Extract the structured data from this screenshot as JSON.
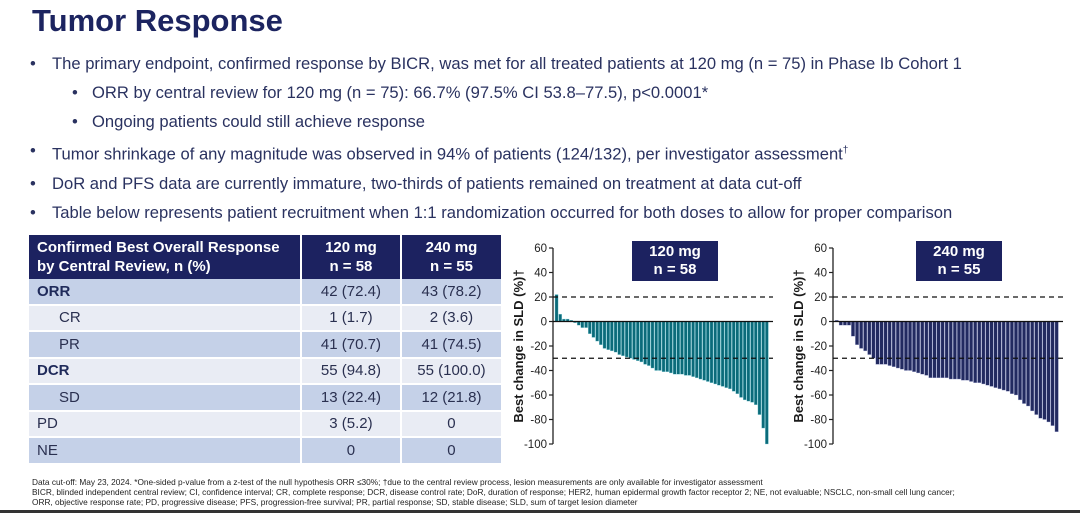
{
  "title": "Tumor Response",
  "bullets": [
    {
      "level": 1,
      "text": "The primary endpoint, confirmed response by BICR, was met for all treated patients at 120 mg (n = 75) in Phase Ib Cohort 1"
    },
    {
      "level": 2,
      "text": "ORR by central review for 120 mg (n = 75): 66.7% (97.5% CI 53.8–77.5), p<0.0001*"
    },
    {
      "level": 2,
      "text": "Ongoing patients could still achieve response"
    },
    {
      "level": 1,
      "text": "Tumor shrinkage of any magnitude was observed in 94% of patients (124/132), per investigator assessment",
      "sup": "†"
    },
    {
      "level": 1,
      "text": "DoR and PFS data are currently immature, two-thirds of patients remained on treatment at data cut-off"
    },
    {
      "level": 1,
      "text": "Table below represents patient recruitment when 1:1 randomization occurred for both doses to allow for proper comparison"
    }
  ],
  "bullet_glyph": "•",
  "table": {
    "header": {
      "label_line1": "Confirmed Best Overall Response",
      "label_line2": "by Central Review, n (%)",
      "col1_line1": "120 mg",
      "col1_line2": "n = 58",
      "col2_line1": "240 mg",
      "col2_line2": "n = 55"
    },
    "rows": [
      {
        "label": "ORR",
        "bold": true,
        "indent": false,
        "v120": "42 (72.4)",
        "v240": "43 (78.2)"
      },
      {
        "label": "CR",
        "bold": false,
        "indent": true,
        "v120": "1 (1.7)",
        "v240": "2 (3.6)"
      },
      {
        "label": "PR",
        "bold": false,
        "indent": true,
        "v120": "41 (70.7)",
        "v240": "41 (74.5)"
      },
      {
        "label": "DCR",
        "bold": true,
        "indent": false,
        "v120": "55 (94.8)",
        "v240": "55 (100.0)"
      },
      {
        "label": "SD",
        "bold": false,
        "indent": true,
        "v120": "13 (22.4)",
        "v240": "12 (21.8)"
      },
      {
        "label": "PD",
        "bold": false,
        "indent": false,
        "v120": "3 (5.2)",
        "v240": "0"
      },
      {
        "label": "NE",
        "bold": false,
        "indent": false,
        "v120": "0",
        "v240": "0"
      }
    ]
  },
  "chart_data": [
    {
      "type": "bar",
      "title_line1": "120 mg",
      "title_line2": "n = 58",
      "ylabel": "Best change in SLD (%)†",
      "xlabel": "",
      "ylim": [
        -100,
        60
      ],
      "yticks": [
        60,
        40,
        20,
        0,
        -20,
        -40,
        -60,
        -80,
        -100
      ],
      "reference_lines": [
        20,
        -30
      ],
      "color": "#0b6b7a",
      "values": [
        22,
        6,
        2,
        2,
        1,
        -1,
        -3,
        -5,
        -5,
        -10,
        -13,
        -16,
        -19,
        -22,
        -23,
        -24,
        -25,
        -27,
        -28,
        -29,
        -30,
        -31,
        -32,
        -33,
        -35,
        -36,
        -38,
        -40,
        -40,
        -41,
        -41,
        -42,
        -43,
        -43,
        -43,
        -44,
        -44,
        -45,
        -46,
        -47,
        -48,
        -49,
        -50,
        -51,
        -52,
        -53,
        -54,
        -55,
        -57,
        -59,
        -62,
        -64,
        -65,
        -66,
        -68,
        -76,
        -87,
        -100
      ]
    },
    {
      "type": "bar",
      "title_line1": "240 mg",
      "title_line2": "n = 55",
      "ylabel": "Best change in SLD (%)†",
      "xlabel": "",
      "ylim": [
        -100,
        60
      ],
      "yticks": [
        60,
        40,
        20,
        0,
        -20,
        -40,
        -60,
        -80,
        -100
      ],
      "reference_lines": [
        20,
        -30
      ],
      "color": "#222a60",
      "values": [
        1,
        -3,
        -3,
        -3,
        -12,
        -19,
        -22,
        -24,
        -27,
        -30,
        -35,
        -35,
        -35,
        -36,
        -37,
        -38,
        -39,
        -40,
        -40,
        -41,
        -42,
        -43,
        -44,
        -46,
        -46,
        -46,
        -46,
        -46,
        -47,
        -47,
        -47,
        -48,
        -48,
        -49,
        -50,
        -50,
        -51,
        -52,
        -53,
        -54,
        -55,
        -56,
        -57,
        -59,
        -60,
        -64,
        -67,
        -69,
        -73,
        -76,
        -79,
        -80,
        -82,
        -85,
        -90
      ]
    }
  ],
  "footnotes": [
    "Data cut-off: May 23, 2024. *One-sided p-value from a z-test of the null hypothesis ORR ≤30%; †due to the central review process, lesion measurements are only available for investigator assessment",
    "BICR, blinded independent central review; CI, confidence interval; CR, complete response; DCR, disease control rate; DoR, duration of response; HER2, human epidermal growth factor receptor 2; NE, not evaluable; NSCLC, non-small cell lung cancer;",
    "ORR, objective response rate; PD, progressive disease; PFS, progression-free survival; PR, partial response; SD, stable disease; SLD, sum of target lesion diameter"
  ]
}
